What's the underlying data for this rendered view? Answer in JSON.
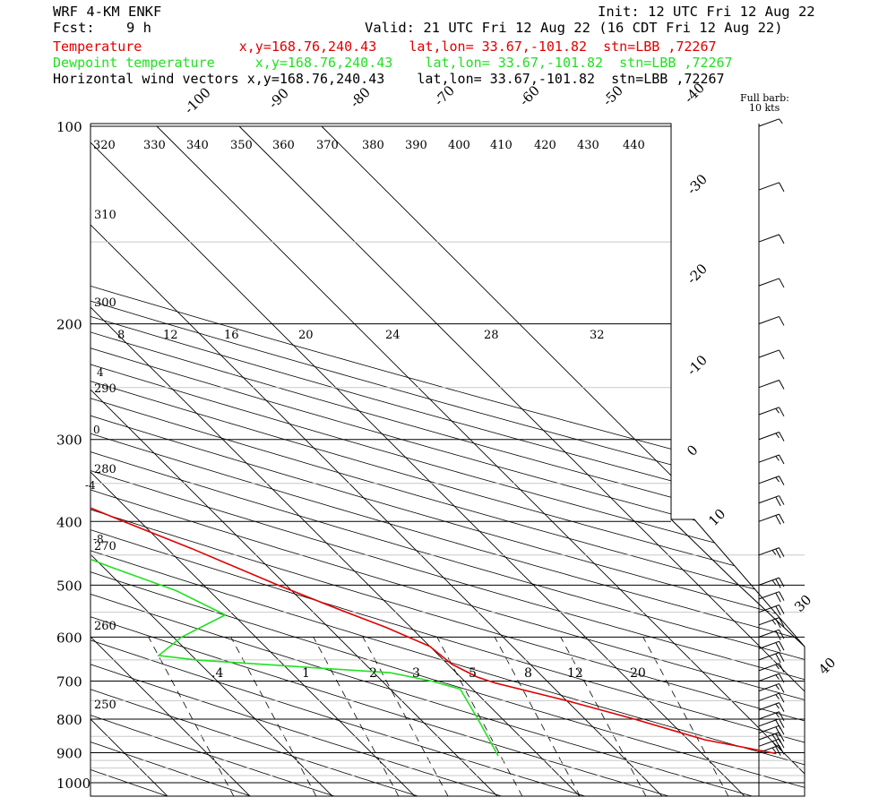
{
  "header": {
    "model": "WRF 4-KM ENKF",
    "fcst_label": "Fcst:",
    "fcst_value": "9 h",
    "init": "Init: 12 UTC Fri 12 Aug 22",
    "valid": "Valid: 21 UTC Fri 12 Aug 22 (16 CDT Fri 12 Aug 22)",
    "temperature_line": "Temperature            x,y=168.76,240.43    lat,lon= 33.67,-101.82  stn=LBB ,72267",
    "dewpoint_line": "Dewpoint temperature     x,y=168.76,240.43    lat,lon= 33.67,-101.82  stn=LBB ,72267",
    "wind_line": "Horizontal wind vectors x,y=168.76,240.43    lat,lon= 33.67,-101.82  stn=LBB ,72267",
    "barb_note": [
      "Full barb:",
      "10 kts"
    ]
  },
  "colors": {
    "temperature": "#e00000",
    "dewpoint": "#22e022",
    "frame": "#000000",
    "isobar_minor": "#c8c8c8"
  },
  "chart_data": {
    "type": "line",
    "subtype": "skew-T log-p",
    "pressure_axis": {
      "ticks": [
        100,
        200,
        300,
        400,
        500,
        600,
        700,
        800,
        900,
        1000
      ],
      "ylim": [
        1050,
        100
      ],
      "scale": "log"
    },
    "isotherm_labels": [
      "-100",
      "-90",
      "-80",
      "-70",
      "-60",
      "-50",
      "-40",
      "-30",
      "-20",
      "-10",
      "0",
      "10",
      "30",
      "40"
    ],
    "theta_labels": [
      "320",
      "330",
      "340",
      "350",
      "360",
      "370",
      "380",
      "390",
      "400",
      "410",
      "420",
      "430",
      "440",
      "310",
      "300",
      "290",
      "280",
      "270",
      "260",
      "250"
    ],
    "thetae_labels": [
      "8",
      "12",
      "16",
      "20",
      "24",
      "28",
      "32"
    ],
    "side_temp_labels": [
      "4",
      "0",
      "-4",
      "-8"
    ],
    "mixing_ratio_labels": [
      ".4",
      "1",
      "2",
      "3",
      "5",
      "8",
      "12",
      "20"
    ],
    "series": [
      {
        "name": "Temperature",
        "units": "C",
        "points": [
          [
            903,
            39
          ],
          [
            860,
            32
          ],
          [
            800,
            26
          ],
          [
            750,
            20
          ],
          [
            705,
            13.5
          ],
          [
            690,
            12
          ],
          [
            660,
            10.5
          ],
          [
            620,
            10
          ],
          [
            580,
            7
          ],
          [
            540,
            3
          ],
          [
            500,
            -1
          ],
          [
            440,
            -7
          ],
          [
            400,
            -12
          ],
          [
            340,
            -20
          ],
          [
            300,
            -26
          ],
          [
            260,
            -33
          ],
          [
            215,
            -41
          ],
          [
            180,
            -47
          ],
          [
            160,
            -52
          ],
          [
            140,
            -56
          ],
          [
            120,
            -57
          ],
          [
            100,
            -62
          ]
        ]
      },
      {
        "name": "Dewpoint temperature",
        "units": "C",
        "points": [
          [
            910,
            5
          ],
          [
            800,
            7
          ],
          [
            720,
            8.5
          ],
          [
            700,
            6
          ],
          [
            680,
            2
          ],
          [
            650,
            -20
          ],
          [
            640,
            -24
          ],
          [
            600,
            -19
          ],
          [
            555,
            -11
          ],
          [
            510,
            -14
          ],
          [
            470,
            -19
          ],
          [
            430,
            -24
          ],
          [
            390,
            -30
          ],
          [
            350,
            -38
          ],
          [
            300,
            -46
          ],
          [
            260,
            -50
          ],
          [
            210,
            -54
          ],
          [
            170,
            -62
          ],
          [
            130,
            -72
          ],
          [
            100,
            -76
          ]
        ]
      }
    ],
    "wind_barbs_kts": [
      [
        100,
        5
      ],
      [
        125,
        10
      ],
      [
        150,
        10
      ],
      [
        175,
        10
      ],
      [
        200,
        10
      ],
      [
        225,
        10
      ],
      [
        250,
        12
      ],
      [
        275,
        15
      ],
      [
        300,
        15
      ],
      [
        325,
        15
      ],
      [
        350,
        15
      ],
      [
        375,
        20
      ],
      [
        400,
        20
      ],
      [
        450,
        25
      ],
      [
        500,
        25
      ],
      [
        525,
        20
      ],
      [
        550,
        20
      ],
      [
        575,
        25
      ],
      [
        600,
        20
      ],
      [
        625,
        20
      ],
      [
        650,
        20
      ],
      [
        675,
        15
      ],
      [
        700,
        15
      ],
      [
        725,
        15
      ],
      [
        750,
        15
      ],
      [
        775,
        15
      ],
      [
        800,
        15
      ],
      [
        820,
        20
      ],
      [
        840,
        20
      ],
      [
        860,
        25
      ],
      [
        880,
        25
      ],
      [
        900,
        25
      ]
    ]
  }
}
